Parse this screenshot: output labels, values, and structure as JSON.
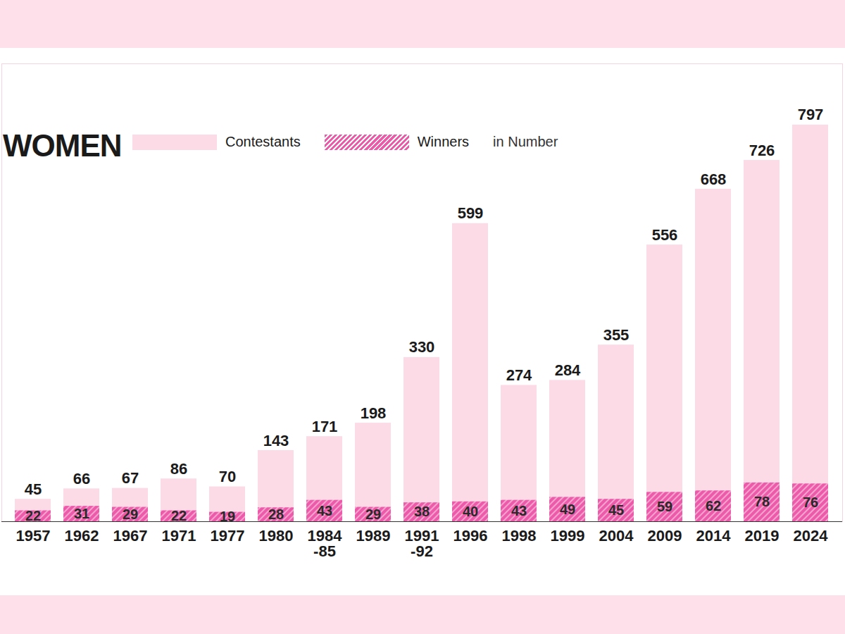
{
  "chart_data": {
    "type": "bar",
    "title": "WOMEN",
    "subtitle": "in Number",
    "categories": [
      "1957",
      "1962",
      "1967",
      "1971",
      "1977",
      "1980",
      "1984-85",
      "1989",
      "1991-92",
      "1996",
      "1998",
      "1999",
      "2004",
      "2009",
      "2014",
      "2019",
      "2024"
    ],
    "series": [
      {
        "name": "Contestants",
        "color": "#fddbe6",
        "values": [
          45,
          66,
          67,
          86,
          70,
          143,
          171,
          198,
          330,
          599,
          274,
          284,
          355,
          556,
          668,
          726,
          797
        ]
      },
      {
        "name": "Winners",
        "color": "#ec5aa9",
        "values": [
          22,
          31,
          29,
          22,
          19,
          28,
          43,
          29,
          38,
          40,
          43,
          49,
          45,
          59,
          62,
          78,
          76
        ]
      }
    ],
    "ylim": [
      0,
      920
    ],
    "yticks": [],
    "stacked": false,
    "data_labels": true,
    "tick_labels": "x",
    "legend": "top-left"
  }
}
